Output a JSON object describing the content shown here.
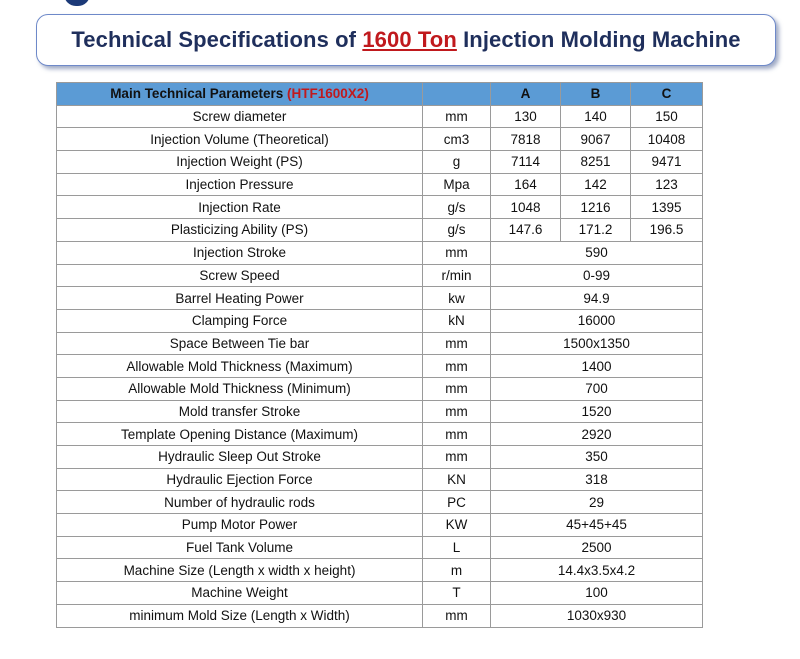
{
  "title": {
    "prefix": "Technical Specifications of",
    "accent": "1600 Ton",
    "suffix": "Injection Molding Machine"
  },
  "table": {
    "header": {
      "parameter_label": "Main Technical Parameters",
      "model_code": "(HTF1600X2)",
      "columns": [
        "A",
        "B",
        "C"
      ]
    },
    "rows": [
      {
        "param": "Screw diameter",
        "unit": "mm",
        "a": "130",
        "b": "140",
        "c": "150"
      },
      {
        "param": "Injection Volume (Theoretical)",
        "unit": "cm3",
        "a": "7818",
        "b": "9067",
        "c": "10408"
      },
      {
        "param": "Injection Weight (PS)",
        "unit": "g",
        "a": "7114",
        "b": "8251",
        "c": "9471"
      },
      {
        "param": "Injection Pressure",
        "unit": "Mpa",
        "a": "164",
        "b": "142",
        "c": "123"
      },
      {
        "param": "Injection Rate",
        "unit": "g/s",
        "a": "1048",
        "b": "1216",
        "c": "1395"
      },
      {
        "param": "Plasticizing Ability (PS)",
        "unit": "g/s",
        "a": "147.6",
        "b": "171.2",
        "c": "196.5"
      },
      {
        "param": "Injection Stroke",
        "unit": "mm",
        "value": "590"
      },
      {
        "param": "Screw Speed",
        "unit": "r/min",
        "value": "0-99"
      },
      {
        "param": "Barrel Heating Power",
        "unit": "kw",
        "value": "94.9"
      },
      {
        "param": "Clamping Force",
        "unit": "kN",
        "value": "16000"
      },
      {
        "param": "Space Between Tie bar",
        "unit": "mm",
        "value": "1500x1350"
      },
      {
        "param": "Allowable Mold Thickness (Maximum)",
        "unit": "mm",
        "value": "1400"
      },
      {
        "param": "Allowable Mold Thickness (Minimum)",
        "unit": "mm",
        "value": "700"
      },
      {
        "param": "Mold transfer Stroke",
        "unit": "mm",
        "value": "1520"
      },
      {
        "param": "Template Opening Distance (Maximum)",
        "unit": "mm",
        "value": "2920"
      },
      {
        "param": "Hydraulic Sleep Out Stroke",
        "unit": "mm",
        "value": "350"
      },
      {
        "param": "Hydraulic Ejection Force",
        "unit": "KN",
        "value": "318"
      },
      {
        "param": "Number of hydraulic rods",
        "unit": "PC",
        "value": "29"
      },
      {
        "param": "Pump Motor Power",
        "unit": "KW",
        "value": "45+45+45"
      },
      {
        "param": "Fuel Tank Volume",
        "unit": "L",
        "value": "2500"
      },
      {
        "param": "Machine Size (Length x width x height)",
        "unit": "m",
        "value": "14.4x3.5x4.2"
      },
      {
        "param": "Machine Weight",
        "unit": "T",
        "value": "100"
      },
      {
        "param": "minimum Mold Size (Length x Width)",
        "unit": "mm",
        "value": "1030x930"
      }
    ]
  },
  "colors": {
    "header_bg": "#5b9bd5",
    "accent_red": "#c0191d",
    "title_navy": "#1f2f5c"
  }
}
